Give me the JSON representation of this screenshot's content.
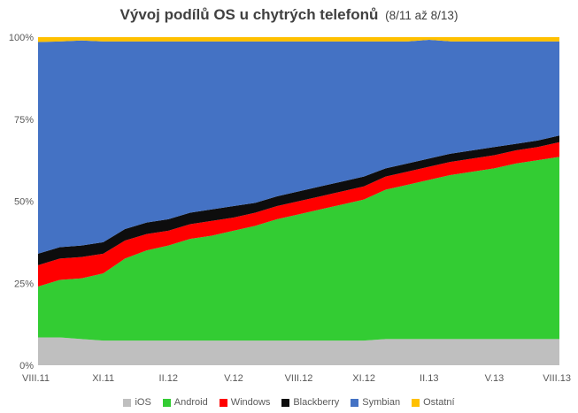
{
  "chart_data": {
    "type": "area",
    "stacked": true,
    "normalized": true,
    "title": "Vývoj podílů OS u chytrých telefonů",
    "subtitle": "(8/11 až 8/13)",
    "x_tick_labels": [
      "VIII.11",
      "XI.11",
      "II.12",
      "V.12",
      "VIII.12",
      "XI.12",
      "II.13",
      "V.13",
      "VIII.13"
    ],
    "y_tick_labels": [
      "0%",
      "25%",
      "50%",
      "75%",
      "100%"
    ],
    "ylim": [
      0,
      100
    ],
    "grid": false,
    "legend_position": "bottom",
    "x": [
      "VIII.11",
      "IX.11",
      "X.11",
      "XI.11",
      "XII.11",
      "I.12",
      "II.12",
      "III.12",
      "IV.12",
      "V.12",
      "VI.12",
      "VII.12",
      "VIII.12",
      "IX.12",
      "X.12",
      "XI.12",
      "XII.12",
      "I.13",
      "II.13",
      "III.13",
      "IV.13",
      "V.13",
      "VI.13",
      "VII.13",
      "VIII.13"
    ],
    "series": [
      {
        "name": "iOS",
        "color": "#bfbfbf",
        "values": [
          8.5,
          8.5,
          8,
          7.5,
          7.5,
          7.5,
          7.5,
          7.5,
          7.5,
          7.5,
          7.5,
          7.5,
          7.5,
          7.5,
          7.5,
          7.5,
          8,
          8,
          8,
          8,
          8,
          8,
          8,
          8,
          8
        ]
      },
      {
        "name": "Android",
        "color": "#33cc33",
        "values": [
          15.5,
          17.5,
          18.5,
          20.5,
          25,
          27.5,
          29,
          31,
          32,
          33.5,
          35,
          37,
          38.5,
          40,
          41.5,
          43,
          45.5,
          47,
          48.5,
          50,
          51,
          52,
          53.5,
          54.5,
          55.5
        ]
      },
      {
        "name": "Windows",
        "color": "#ff0000",
        "values": [
          6.5,
          6.5,
          6.5,
          6,
          5.5,
          5,
          4.5,
          4.5,
          4.5,
          4,
          4,
          4,
          4,
          4,
          4,
          4,
          4,
          4,
          4,
          4,
          4,
          4,
          4,
          4,
          4.5
        ]
      },
      {
        "name": "Blackberry",
        "color": "#0d0d0d",
        "values": [
          3.5,
          3.5,
          3.5,
          3.5,
          3.5,
          3.5,
          3.5,
          3.5,
          3.5,
          3.5,
          3,
          3,
          3,
          3,
          3,
          3,
          2.5,
          2.5,
          2.5,
          2.5,
          2.5,
          2.5,
          2,
          2,
          2
        ]
      },
      {
        "name": "Symbian",
        "color": "#4472c4",
        "values": [
          64.5,
          62.7,
          62.5,
          61.2,
          57.2,
          55.2,
          54.2,
          52.2,
          51.2,
          50.2,
          49.2,
          47.2,
          45.7,
          44.2,
          42.7,
          41.2,
          38.7,
          37.2,
          36.2,
          34.2,
          33.2,
          32.2,
          31.2,
          30.2,
          28.7
        ]
      },
      {
        "name": "Ostatní",
        "color": "#ffc000",
        "values": [
          1.5,
          1.3,
          1.5,
          1.3,
          1.3,
          1.3,
          1.3,
          1.3,
          1.3,
          1.3,
          1.3,
          1.3,
          1.3,
          1.3,
          1.3,
          1.3,
          1.3,
          1.3,
          0.8,
          1.3,
          1.3,
          1.3,
          1.3,
          1.3,
          1.3
        ]
      }
    ]
  }
}
